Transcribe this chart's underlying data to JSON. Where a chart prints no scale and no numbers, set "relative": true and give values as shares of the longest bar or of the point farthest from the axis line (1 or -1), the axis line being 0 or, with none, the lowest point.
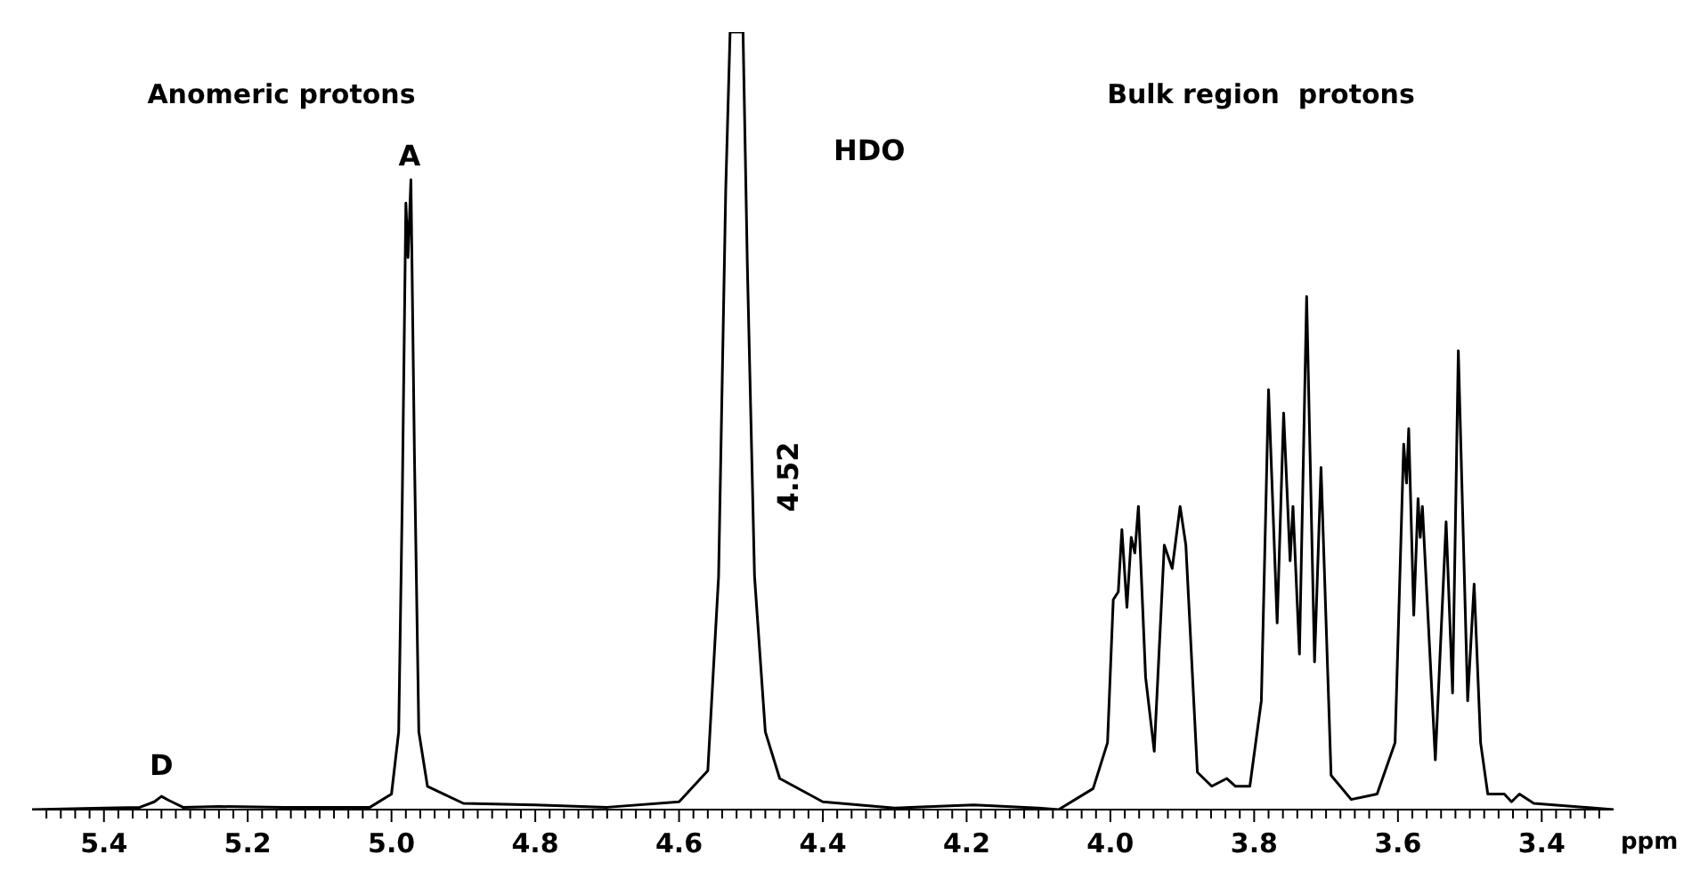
{
  "chart_data": {
    "type": "line",
    "relative": true,
    "xlabel": "ppm",
    "color": "#000000",
    "marker": "none",
    "line_style": "solid",
    "xlim": [
      5.5,
      3.3
    ],
    "xticks": [
      {
        "value": 5.48,
        "label": null
      },
      {
        "value": 5.46,
        "label": null
      },
      {
        "value": 5.44,
        "label": null
      },
      {
        "value": 5.42,
        "label": null
      },
      5.4,
      {
        "value": 5.38,
        "label": null
      },
      {
        "value": 5.36,
        "label": null
      },
      {
        "value": 5.34,
        "label": null
      },
      {
        "value": 5.32,
        "label": null
      },
      {
        "value": 5.3,
        "label": null
      },
      {
        "value": 5.28,
        "label": null
      },
      {
        "value": 5.26,
        "label": null
      },
      {
        "value": 5.24,
        "label": null
      },
      {
        "value": 5.22,
        "label": null
      },
      5.2,
      {
        "value": 5.18,
        "label": null
      },
      {
        "value": 5.16,
        "label": null
      },
      {
        "value": 5.14,
        "label": null
      },
      {
        "value": 5.12,
        "label": null
      },
      {
        "value": 5.1,
        "label": null
      },
      {
        "value": 5.08,
        "label": null
      },
      {
        "value": 5.06,
        "label": null
      },
      {
        "value": 5.04,
        "label": null
      },
      {
        "value": 5.02,
        "label": null
      },
      {
        "value": 5.0,
        "label": "5.0"
      },
      {
        "value": 4.98,
        "label": null
      },
      {
        "value": 4.96,
        "label": null
      },
      {
        "value": 4.94,
        "label": null
      },
      {
        "value": 4.92,
        "label": null
      },
      {
        "value": 4.9,
        "label": null
      },
      {
        "value": 4.88,
        "label": null
      },
      {
        "value": 4.86,
        "label": null
      },
      {
        "value": 4.84,
        "label": null
      },
      {
        "value": 4.82,
        "label": null
      },
      4.8,
      {
        "value": 4.78,
        "label": null
      },
      {
        "value": 4.76,
        "label": null
      },
      {
        "value": 4.74,
        "label": null
      },
      {
        "value": 4.72,
        "label": null
      },
      {
        "value": 4.7,
        "label": null
      },
      {
        "value": 4.68,
        "label": null
      },
      {
        "value": 4.66,
        "label": null
      },
      {
        "value": 4.64,
        "label": null
      },
      {
        "value": 4.62,
        "label": null
      },
      4.6,
      {
        "value": 4.58,
        "label": null
      },
      {
        "value": 4.56,
        "label": null
      },
      {
        "value": 4.54,
        "label": null
      },
      {
        "value": 4.52,
        "label": null
      },
      {
        "value": 4.5,
        "label": null
      },
      {
        "value": 4.48,
        "label": null
      },
      {
        "value": 4.46,
        "label": null
      },
      {
        "value": 4.44,
        "label": null
      },
      {
        "value": 4.42,
        "label": null
      },
      4.4,
      {
        "value": 4.38,
        "label": null
      },
      {
        "value": 4.36,
        "label": null
      },
      {
        "value": 4.34,
        "label": null
      },
      {
        "value": 4.32,
        "label": null
      },
      {
        "value": 4.3,
        "label": null
      },
      {
        "value": 4.28,
        "label": null
      },
      {
        "value": 4.26,
        "label": null
      },
      {
        "value": 4.24,
        "label": null
      },
      {
        "value": 4.22,
        "label": null
      },
      4.2,
      {
        "value": 4.18,
        "label": null
      },
      {
        "value": 4.16,
        "label": null
      },
      {
        "value": 4.14,
        "label": null
      },
      {
        "value": 4.12,
        "label": null
      },
      {
        "value": 4.1,
        "label": null
      },
      {
        "value": 4.08,
        "label": null
      },
      {
        "value": 4.06,
        "label": null
      },
      {
        "value": 4.04,
        "label": null
      },
      {
        "value": 4.02,
        "label": null
      },
      {
        "value": 4.0,
        "label": "4.0"
      },
      {
        "value": 3.98,
        "label": null
      },
      {
        "value": 3.96,
        "label": null
      },
      {
        "value": 3.94,
        "label": null
      },
      {
        "value": 3.92,
        "label": null
      },
      {
        "value": 3.9,
        "label": null
      },
      {
        "value": 3.88,
        "label": null
      },
      {
        "value": 3.86,
        "label": null
      },
      {
        "value": 3.84,
        "label": null
      },
      {
        "value": 3.82,
        "label": null
      },
      3.8,
      {
        "value": 3.78,
        "label": null
      },
      {
        "value": 3.76,
        "label": null
      },
      {
        "value": 3.74,
        "label": null
      },
      {
        "value": 3.72,
        "label": null
      },
      {
        "value": 3.7,
        "label": null
      },
      {
        "value": 3.68,
        "label": null
      },
      {
        "value": 3.66,
        "label": null
      },
      {
        "value": 3.64,
        "label": null
      },
      {
        "value": 3.62,
        "label": null
      },
      3.6,
      {
        "value": 3.58,
        "label": null
      },
      {
        "value": 3.56,
        "label": null
      },
      {
        "value": 3.54,
        "label": null
      },
      {
        "value": 3.52,
        "label": null
      },
      {
        "value": 3.5,
        "label": null
      },
      {
        "value": 3.48,
        "label": null
      },
      {
        "value": 3.46,
        "label": null
      },
      {
        "value": 3.44,
        "label": null
      },
      {
        "value": 3.42,
        "label": null
      },
      3.4,
      {
        "value": 3.38,
        "label": null
      },
      {
        "value": 3.36,
        "label": null
      },
      {
        "value": 3.34,
        "label": null
      },
      {
        "value": 3.32,
        "label": null
      }
    ],
    "x": [
      5.5,
      5.4,
      5.35,
      5.33,
      5.32,
      5.31,
      5.29,
      5.24,
      5.15,
      5.03,
      5.0,
      4.99,
      4.985,
      4.98,
      4.977,
      4.973,
      4.968,
      4.962,
      4.95,
      4.9,
      4.8,
      4.7,
      4.6,
      4.56,
      4.545,
      4.535,
      4.529,
      4.511,
      4.505,
      4.495,
      4.48,
      4.46,
      4.4,
      4.3,
      4.19,
      4.1,
      4.072,
      4.024,
      4.004,
      3.996,
      3.989,
      3.984,
      3.977,
      3.971,
      3.966,
      3.961,
      3.951,
      3.939,
      3.925,
      3.914,
      3.903,
      3.895,
      3.879,
      3.859,
      3.838,
      3.826,
      3.806,
      3.79,
      3.78,
      3.768,
      3.759,
      3.75,
      3.746,
      3.737,
      3.727,
      3.716,
      3.707,
      3.693,
      3.665,
      3.629,
      3.604,
      3.592,
      3.588,
      3.585,
      3.578,
      3.572,
      3.569,
      3.566,
      3.548,
      3.533,
      3.524,
      3.516,
      3.503,
      3.494,
      3.485,
      3.475,
      3.452,
      3.442,
      3.431,
      3.411,
      3.3
    ],
    "values": [
      0,
      0.002,
      0.003,
      0.01,
      0.017,
      0.012,
      0.003,
      0.004,
      0.003,
      0.003,
      0.02,
      0.1,
      0.4,
      0.78,
      0.71,
      0.81,
      0.45,
      0.1,
      0.03,
      0.008,
      0.006,
      0.003,
      0.01,
      0.05,
      0.3,
      0.8,
      1,
      1,
      0.7,
      0.3,
      0.1,
      0.04,
      0.01,
      0.002,
      0.006,
      0.002,
      0,
      0.027,
      0.086,
      0.27,
      0.28,
      0.36,
      0.26,
      0.35,
      0.33,
      0.39,
      0.17,
      0.075,
      0.34,
      0.31,
      0.39,
      0.34,
      0.048,
      0.03,
      0.04,
      0.03,
      0.03,
      0.14,
      0.54,
      0.24,
      0.51,
      0.32,
      0.39,
      0.2,
      0.66,
      0.19,
      0.44,
      0.044,
      0.013,
      0.02,
      0.086,
      0.47,
      0.42,
      0.49,
      0.25,
      0.4,
      0.35,
      0.39,
      0.064,
      0.37,
      0.15,
      0.59,
      0.14,
      0.29,
      0.086,
      0.02,
      0.02,
      0.01,
      0.02,
      0.008,
      0
    ],
    "annotations": [
      "Anomeric protons",
      "Bulk region  protons",
      "HDO",
      "4.52",
      {
        "text": "A",
        "x": 4.975,
        "y": 0.81
      },
      {
        "text": "D",
        "x": 5.32,
        "y": 0.017
      }
    ]
  }
}
